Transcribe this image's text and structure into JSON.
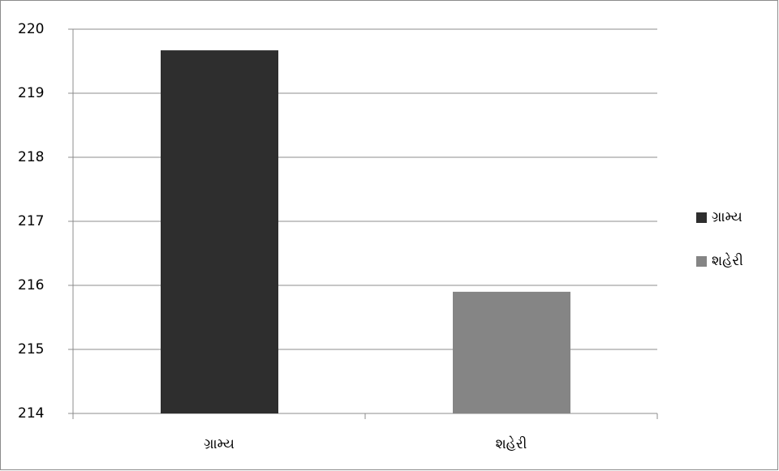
{
  "chart_data": {
    "type": "bar",
    "categories": [
      "ગ્રામ્ય",
      "શહેરી"
    ],
    "series": [
      {
        "name": "ગ્રામ્ય",
        "color": "#2e2e2e",
        "values": [
          219.67,
          null
        ]
      },
      {
        "name": "શહેરી",
        "color": "#858585",
        "values": [
          null,
          215.9
        ]
      }
    ],
    "ylim": [
      214,
      220
    ],
    "yticks": [
      214,
      215,
      216,
      217,
      218,
      219,
      220
    ],
    "grid": true,
    "legend": "right"
  }
}
